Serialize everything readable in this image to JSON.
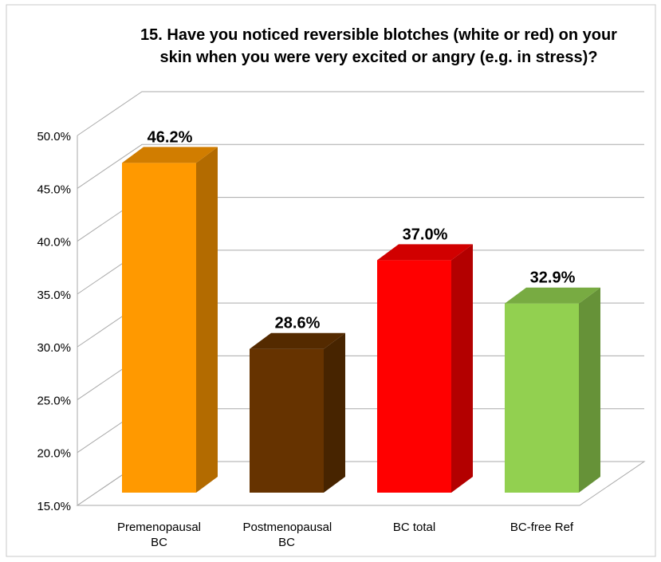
{
  "chart_data": {
    "type": "bar3d",
    "title": [
      "15. Have you noticed reversible blotches (white or red) on your",
      "skin when you were very excited or angry (e.g. in stress)?"
    ],
    "categories": [
      "Premenopausal BC",
      "Postmenopausal BC",
      "BC total",
      "BC-free Ref"
    ],
    "values": [
      46.2,
      28.6,
      37.0,
      32.9
    ],
    "value_labels": [
      "46.2%",
      "28.6%",
      "37.0%",
      "32.9%"
    ],
    "colors": [
      "#FF9900",
      "#663300",
      "#FF0000",
      "#92D050"
    ],
    "ylim": [
      15,
      50
    ],
    "yticks": [
      {
        "value": 15,
        "label": "15.0%"
      },
      {
        "value": 20,
        "label": "20.0%"
      },
      {
        "value": 25,
        "label": "25.0%"
      },
      {
        "value": 30,
        "label": "30.0%"
      },
      {
        "value": 35,
        "label": "35.0%"
      },
      {
        "value": 40,
        "label": "40.0%"
      },
      {
        "value": 45,
        "label": "45.0%"
      },
      {
        "value": 50,
        "label": "50.0%"
      }
    ],
    "grid": true
  }
}
